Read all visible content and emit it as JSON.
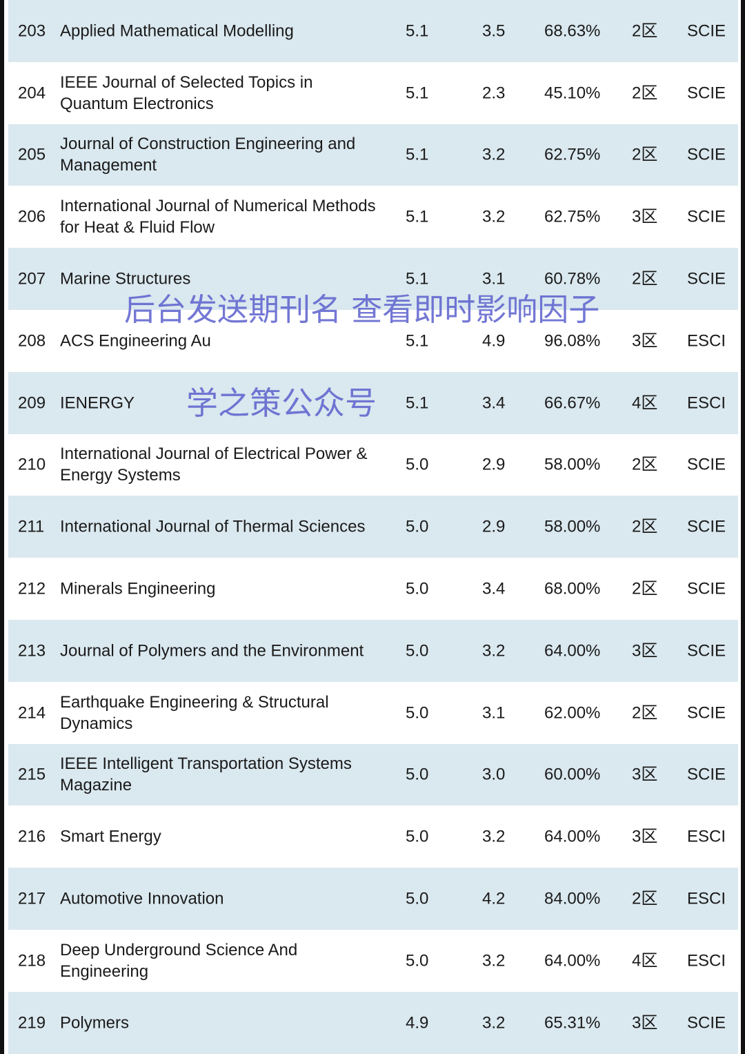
{
  "rows": [
    {
      "rank": "203",
      "name": "Applied Mathematical Modelling",
      "if": "5.1",
      "value": "3.5",
      "percent": "68.63%",
      "zone": "2区",
      "index": "SCIE"
    },
    {
      "rank": "204",
      "name": "IEEE Journal of Selected Topics in Quantum Electronics",
      "if": "5.1",
      "value": "2.3",
      "percent": "45.10%",
      "zone": "2区",
      "index": "SCIE"
    },
    {
      "rank": "205",
      "name": "Journal of Construction Engineering and Management",
      "if": "5.1",
      "value": "3.2",
      "percent": "62.75%",
      "zone": "2区",
      "index": "SCIE"
    },
    {
      "rank": "206",
      "name": "International Journal of Numerical Methods for Heat & Fluid Flow",
      "if": "5.1",
      "value": "3.2",
      "percent": "62.75%",
      "zone": "3区",
      "index": "SCIE"
    },
    {
      "rank": "207",
      "name": "Marine Structures",
      "if": "5.1",
      "value": "3.1",
      "percent": "60.78%",
      "zone": "2区",
      "index": "SCIE"
    },
    {
      "rank": "208",
      "name": "ACS Engineering Au",
      "if": "5.1",
      "value": "4.9",
      "percent": "96.08%",
      "zone": "3区",
      "index": "ESCI"
    },
    {
      "rank": "209",
      "name": "IENERGY",
      "if": "5.1",
      "value": "3.4",
      "percent": "66.67%",
      "zone": "4区",
      "index": "ESCI"
    },
    {
      "rank": "210",
      "name": "International Journal of Electrical Power & Energy Systems",
      "if": "5.0",
      "value": "2.9",
      "percent": "58.00%",
      "zone": "2区",
      "index": "SCIE"
    },
    {
      "rank": "211",
      "name": "International Journal of Thermal Sciences",
      "if": "5.0",
      "value": "2.9",
      "percent": "58.00%",
      "zone": "2区",
      "index": "SCIE"
    },
    {
      "rank": "212",
      "name": "Minerals Engineering",
      "if": "5.0",
      "value": "3.4",
      "percent": "68.00%",
      "zone": "2区",
      "index": "SCIE"
    },
    {
      "rank": "213",
      "name": "Journal of Polymers and the Environment",
      "if": "5.0",
      "value": "3.2",
      "percent": "64.00%",
      "zone": "3区",
      "index": "SCIE"
    },
    {
      "rank": "214",
      "name": "Earthquake Engineering & Structural Dynamics",
      "if": "5.0",
      "value": "3.1",
      "percent": "62.00%",
      "zone": "2区",
      "index": "SCIE"
    },
    {
      "rank": "215",
      "name": "IEEE Intelligent Transportation Systems Magazine",
      "if": "5.0",
      "value": "3.0",
      "percent": "60.00%",
      "zone": "3区",
      "index": "SCIE"
    },
    {
      "rank": "216",
      "name": "Smart Energy",
      "if": "5.0",
      "value": "3.2",
      "percent": "64.00%",
      "zone": "3区",
      "index": "ESCI"
    },
    {
      "rank": "217",
      "name": "Automotive Innovation",
      "if": "5.0",
      "value": "4.2",
      "percent": "84.00%",
      "zone": "2区",
      "index": "ESCI"
    },
    {
      "rank": "218",
      "name": "Deep Underground Science And Engineering",
      "if": "5.0",
      "value": "3.2",
      "percent": "64.00%",
      "zone": "4区",
      "index": "ESCI"
    },
    {
      "rank": "219",
      "name": "Polymers",
      "if": "4.9",
      "value": "3.2",
      "percent": "65.31%",
      "zone": "3区",
      "index": "SCIE"
    }
  ],
  "watermarks": {
    "top": "学之策公众号",
    "bottom": "后台发送期刊名 查看即时影响因子"
  },
  "colors": {
    "row_alt": "#dae8ef",
    "watermark": "#5a5fcd"
  }
}
